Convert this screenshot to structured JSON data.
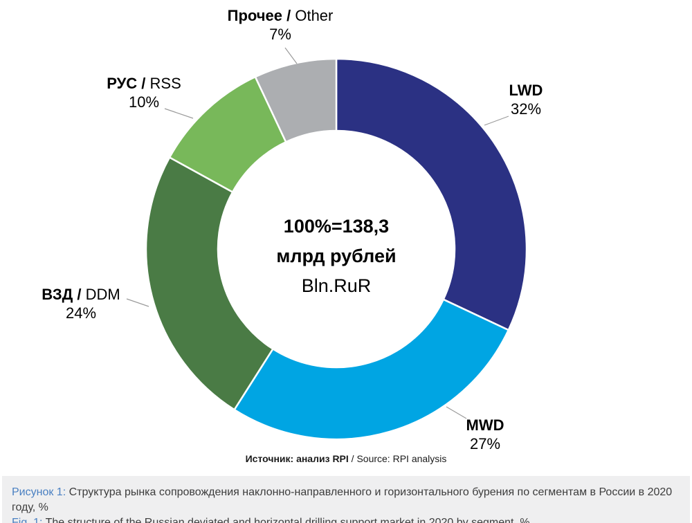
{
  "chart_data": {
    "type": "donut",
    "direction": "clockwise",
    "start_angle_deg": 0,
    "inner_radius_ratio": 0.62,
    "center_label": {
      "line1": "100%=138,3",
      "line2": "млрд рублей",
      "line3": "Bln.RuR"
    },
    "segments": [
      {
        "label_bold": "LWD",
        "label_regular": "",
        "pct_label": "32%",
        "value": 32,
        "color": "#2b3183"
      },
      {
        "label_bold": "MWD",
        "label_regular": "",
        "pct_label": "27%",
        "value": 27,
        "color": "#00a5e3"
      },
      {
        "label_bold": "ВЗД /",
        "label_regular": " DDM",
        "pct_label": "24%",
        "value": 24,
        "color": "#4a7b45"
      },
      {
        "label_bold": "РУС /",
        "label_regular": " RSS",
        "pct_label": "10%",
        "value": 10,
        "color": "#78b85a"
      },
      {
        "label_bold": "Прочее /",
        "label_regular": " Other",
        "pct_label": "7%",
        "value": 7,
        "color": "#acaeb1"
      }
    ],
    "separator_color": "#ffffff",
    "leader_line_color": "#9b9b9b"
  },
  "source": {
    "bold": "Источник: анализ RPI",
    "regular": " / Source: RPI analysis"
  },
  "caption": {
    "ru_label": "Рисунок 1:",
    "ru_text": "Структура рынка сопровождения наклонно-направленного и горизонтального бурения по сегментам в России в 2020 году, %",
    "en_label": "Fig. 1:",
    "en_text": "The structure of the Russian deviated and horizontal drilling support market in 2020 by segment, %"
  }
}
